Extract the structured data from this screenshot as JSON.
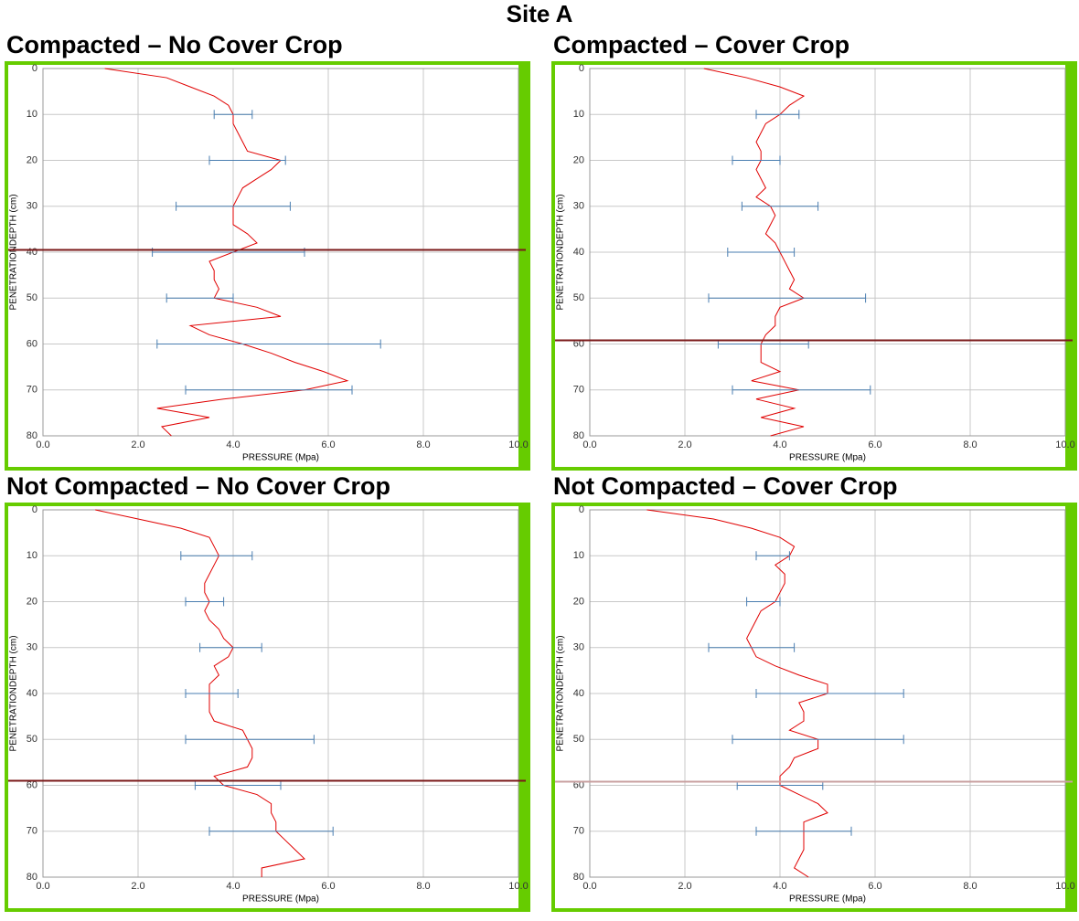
{
  "title": "Site A",
  "chart_data": [
    {
      "type": "line",
      "title": "Compacted – No Cover Crop",
      "xlabel": "PRESSURE  (Mpa)",
      "ylabel": "PENETRATIONDEPTH (cm)",
      "xlim": [
        0,
        10
      ],
      "ylim": [
        0,
        80
      ],
      "y_inverted": true,
      "grid": true,
      "xticks": [
        {
          "value": 0,
          "label": "0.0"
        },
        {
          "value": 2,
          "label": "2.0"
        },
        {
          "value": 4,
          "label": "4.0"
        },
        {
          "value": 6,
          "label": "6.0"
        },
        {
          "value": 8,
          "label": "8.0"
        },
        {
          "value": 10,
          "label": "10.0"
        }
      ],
      "yticks": [
        0,
        10,
        20,
        30,
        40,
        50,
        60,
        70,
        80
      ],
      "depth": [
        0,
        2,
        4,
        6,
        8,
        10,
        12,
        14,
        16,
        18,
        20,
        22,
        24,
        26,
        28,
        30,
        32,
        34,
        36,
        38,
        40,
        42,
        44,
        46,
        48,
        50,
        52,
        54,
        56,
        58,
        60,
        62,
        64,
        66,
        68,
        70,
        72,
        74,
        76,
        78,
        80
      ],
      "series": [
        {
          "color": "#e00000",
          "values": [
            1.3,
            2.6,
            3.1,
            3.6,
            3.9,
            4.0,
            4.0,
            4.1,
            4.2,
            4.3,
            5.0,
            4.8,
            4.5,
            4.2,
            4.1,
            4.0,
            4.0,
            4.0,
            4.3,
            4.5,
            4.0,
            3.5,
            3.6,
            3.6,
            3.7,
            3.6,
            4.5,
            5.0,
            3.1,
            3.5,
            4.2,
            4.8,
            5.3,
            5.9,
            6.4,
            5.5,
            3.8,
            2.4,
            3.5,
            2.5,
            2.7
          ]
        }
      ],
      "error_bars": {
        "color": "#4a7eb0",
        "depth": [
          10,
          20,
          30,
          40,
          50,
          60,
          70
        ],
        "mean": [
          4.0,
          4.3,
          4.0,
          3.9,
          3.3,
          4.75,
          4.75
        ],
        "error": [
          0.4,
          0.8,
          1.2,
          1.6,
          0.7,
          2.35,
          1.75
        ]
      },
      "reference_line": {
        "value": 39.5,
        "color": "#7b1a1a"
      }
    },
    {
      "type": "line",
      "title": "Compacted – Cover Crop",
      "xlabel": "PRESSURE  (Mpa)",
      "ylabel": "PENETRATIONDEPTH (cm)",
      "xlim": [
        0,
        10
      ],
      "ylim": [
        0,
        80
      ],
      "y_inverted": true,
      "grid": true,
      "xticks": [
        {
          "value": 0,
          "label": "0.0"
        },
        {
          "value": 2,
          "label": "2.0"
        },
        {
          "value": 4,
          "label": "4.0"
        },
        {
          "value": 6,
          "label": "6.0"
        },
        {
          "value": 8,
          "label": "8.0"
        },
        {
          "value": 10,
          "label": "10.0"
        }
      ],
      "yticks": [
        0,
        10,
        20,
        30,
        40,
        50,
        60,
        70,
        80
      ],
      "depth": [
        0,
        2,
        4,
        6,
        8,
        10,
        12,
        14,
        16,
        18,
        20,
        22,
        24,
        26,
        28,
        30,
        32,
        34,
        36,
        38,
        40,
        42,
        44,
        46,
        48,
        50,
        52,
        54,
        56,
        58,
        60,
        62,
        64,
        66,
        68,
        70,
        72,
        74,
        76,
        78,
        80
      ],
      "series": [
        {
          "color": "#e00000",
          "values": [
            2.4,
            3.3,
            4.0,
            4.5,
            4.2,
            4.0,
            3.7,
            3.6,
            3.5,
            3.6,
            3.6,
            3.5,
            3.6,
            3.7,
            3.5,
            3.8,
            3.9,
            3.8,
            3.7,
            3.9,
            4.0,
            4.1,
            4.2,
            4.3,
            4.2,
            4.5,
            4.0,
            3.9,
            3.9,
            3.7,
            3.6,
            3.6,
            3.6,
            4.0,
            3.4,
            4.4,
            3.5,
            4.3,
            3.6,
            4.5,
            3.8
          ]
        }
      ],
      "error_bars": {
        "color": "#4a7eb0",
        "depth": [
          10,
          20,
          30,
          40,
          50,
          60,
          70
        ],
        "mean": [
          3.95,
          3.5,
          4.0,
          3.6,
          4.15,
          3.65,
          4.45
        ],
        "error": [
          0.45,
          0.5,
          0.8,
          0.7,
          1.65,
          0.95,
          1.45
        ]
      },
      "reference_line": {
        "value": 59.2,
        "color": "#7b1a1a"
      }
    },
    {
      "type": "line",
      "title": "Not Compacted – No Cover Crop",
      "xlabel": "PRESSURE  (Mpa)",
      "ylabel": "PENETRATIONDEPTH (cm)",
      "xlim": [
        0,
        10
      ],
      "ylim": [
        0,
        80
      ],
      "y_inverted": true,
      "grid": true,
      "xticks": [
        {
          "value": 0,
          "label": "0.0"
        },
        {
          "value": 2,
          "label": "2.0"
        },
        {
          "value": 4,
          "label": "4.0"
        },
        {
          "value": 6,
          "label": "6.0"
        },
        {
          "value": 8,
          "label": "8.0"
        },
        {
          "value": 10,
          "label": "10.0"
        }
      ],
      "yticks": [
        0,
        10,
        20,
        30,
        40,
        50,
        60,
        70,
        80
      ],
      "depth": [
        0,
        2,
        4,
        6,
        8,
        10,
        12,
        14,
        16,
        18,
        20,
        22,
        24,
        26,
        28,
        30,
        32,
        34,
        36,
        38,
        40,
        42,
        44,
        46,
        48,
        50,
        52,
        54,
        56,
        58,
        60,
        62,
        64,
        66,
        68,
        70,
        72,
        74,
        76,
        78,
        80
      ],
      "series": [
        {
          "color": "#e00000",
          "values": [
            1.1,
            2.0,
            2.9,
            3.5,
            3.6,
            3.7,
            3.6,
            3.5,
            3.4,
            3.4,
            3.5,
            3.4,
            3.5,
            3.7,
            3.8,
            4.0,
            3.9,
            3.6,
            3.7,
            3.5,
            3.5,
            3.5,
            3.5,
            3.6,
            4.2,
            4.3,
            4.4,
            4.4,
            4.3,
            3.6,
            3.8,
            4.5,
            4.8,
            4.8,
            4.9,
            4.9,
            5.1,
            5.3,
            5.5,
            4.6,
            4.6
          ]
        }
      ],
      "error_bars": {
        "color": "#4a7eb0",
        "depth": [
          10,
          20,
          30,
          40,
          50,
          60,
          70
        ],
        "mean": [
          3.65,
          3.4,
          3.95,
          3.55,
          4.35,
          4.1,
          4.8
        ],
        "error": [
          0.75,
          0.4,
          0.65,
          0.55,
          1.35,
          0.9,
          1.3
        ]
      },
      "reference_line": {
        "value": 59,
        "color": "#7b1a1a"
      }
    },
    {
      "type": "line",
      "title": "Not Compacted – Cover Crop",
      "xlabel": "PRESSURE  (Mpa)",
      "ylabel": "PENETRATIONDEPTH (cm)",
      "xlim": [
        0,
        10
      ],
      "ylim": [
        0,
        80
      ],
      "y_inverted": true,
      "grid": true,
      "xticks": [
        {
          "value": 0,
          "label": "0.0"
        },
        {
          "value": 2,
          "label": "2.0"
        },
        {
          "value": 4,
          "label": "4.0"
        },
        {
          "value": 6,
          "label": "6.0"
        },
        {
          "value": 8,
          "label": "8.0"
        },
        {
          "value": 10,
          "label": "10.0"
        }
      ],
      "yticks": [
        0,
        10,
        20,
        30,
        40,
        50,
        60,
        70,
        80
      ],
      "depth": [
        0,
        2,
        4,
        6,
        8,
        10,
        12,
        14,
        16,
        18,
        20,
        22,
        24,
        26,
        28,
        30,
        32,
        34,
        36,
        38,
        40,
        42,
        44,
        46,
        48,
        50,
        52,
        54,
        56,
        58,
        60,
        62,
        64,
        66,
        68,
        70,
        72,
        74,
        76,
        78,
        80
      ],
      "series": [
        {
          "color": "#e00000",
          "values": [
            1.2,
            2.6,
            3.4,
            4.0,
            4.3,
            4.2,
            3.9,
            4.1,
            4.1,
            4.0,
            3.9,
            3.6,
            3.5,
            3.4,
            3.3,
            3.4,
            3.5,
            3.9,
            4.4,
            5.0,
            5.0,
            4.4,
            4.5,
            4.5,
            4.2,
            4.8,
            4.8,
            4.3,
            4.2,
            4.0,
            4.0,
            4.4,
            4.8,
            5.0,
            4.5,
            4.5,
            4.5,
            4.5,
            4.4,
            4.3,
            4.6
          ]
        }
      ],
      "error_bars": {
        "color": "#4a7eb0",
        "depth": [
          10,
          20,
          30,
          40,
          50,
          60,
          70
        ],
        "mean": [
          3.85,
          3.65,
          3.4,
          5.05,
          4.8,
          4.0,
          4.5
        ],
        "error": [
          0.35,
          0.35,
          0.9,
          1.55,
          1.8,
          0.9,
          1.0
        ]
      },
      "reference_line": {
        "value": 59.2,
        "color": "#c9a0a0"
      }
    }
  ]
}
